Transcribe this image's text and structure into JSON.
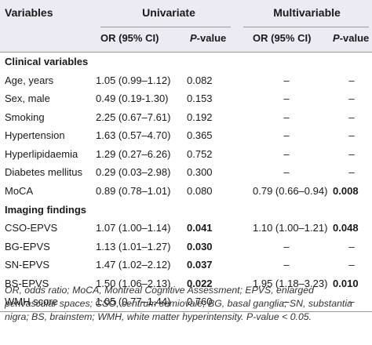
{
  "header": {
    "variables": "Variables",
    "univariate": "Univariate",
    "multivariable": "Multivariable",
    "or_label": "OR (95% CI)",
    "p_label_italic": "P",
    "p_label_suffix": "-value"
  },
  "sections": [
    {
      "title": "Clinical variables",
      "rows": [
        {
          "variable": "Age, years",
          "uni_or": "1.05 (0.99–1.12)",
          "uni_p": "0.082",
          "multi_or": "–",
          "multi_p": "–"
        },
        {
          "variable": "Sex, male",
          "uni_or": "0.49 (0.19-1.30)",
          "uni_p": "0.153",
          "multi_or": "–",
          "multi_p": "–"
        },
        {
          "variable": "Smoking",
          "uni_or": "2.25 (0.67–7.61)",
          "uni_p": "0.192",
          "multi_or": "–",
          "multi_p": "–"
        },
        {
          "variable": "Hypertension",
          "uni_or": "1.63 (0.57–4.70)",
          "uni_p": "0.365",
          "multi_or": "–",
          "multi_p": "–"
        },
        {
          "variable": "Hyperlipidaemia",
          "uni_or": "1.29 (0.27–6.26)",
          "uni_p": "0.752",
          "multi_or": "–",
          "multi_p": "–"
        },
        {
          "variable": "Diabetes mellitus",
          "uni_or": "0.29 (0.03–2.98)",
          "uni_p": "0.300",
          "multi_or": "–",
          "multi_p": "–"
        },
        {
          "variable": "MoCA",
          "uni_or": "0.89 (0.78–1.01)",
          "uni_p": "0.080",
          "multi_or": "0.79 (0.66–0.94)",
          "multi_p": "0.008"
        }
      ]
    },
    {
      "title": "Imaging findings",
      "rows": [
        {
          "variable": "CSO-EPVS",
          "uni_or": "1.07 (1.00–1.14)",
          "uni_p": "0.041",
          "multi_or": "1.10 (1.00–1.21)",
          "multi_p": "0.048"
        },
        {
          "variable": "BG-EPVS",
          "uni_or": "1.13 (1.01–1.27)",
          "uni_p": "0.030",
          "multi_or": "–",
          "multi_p": "–"
        },
        {
          "variable": "SN-EPVS",
          "uni_or": "1.47 (1.02–2.12)",
          "uni_p": "0.037",
          "multi_or": "–",
          "multi_p": "–"
        },
        {
          "variable": "BS-EPVS",
          "uni_or": "1.50 (1.06–2.13)",
          "uni_p": "0.022",
          "multi_or": "1.95 (1.18–3.23)",
          "multi_p": "0.010"
        },
        {
          "variable": "WMH score",
          "uni_or": "1.05 (0.77–1.44)",
          "uni_p": "0.760",
          "multi_or": "–",
          "multi_p": "–"
        }
      ]
    }
  ],
  "footnote": "OR, odds ratio; MoCA, Montreal Cognitive Assessment; EPVS, enlarged perivascular spaces; CSO, centrum semiovale; BG, basal ganglia; SN, substantia nigra; BS, brainstem; WMH, white matter hyperintensity. P-value < 0.05."
}
